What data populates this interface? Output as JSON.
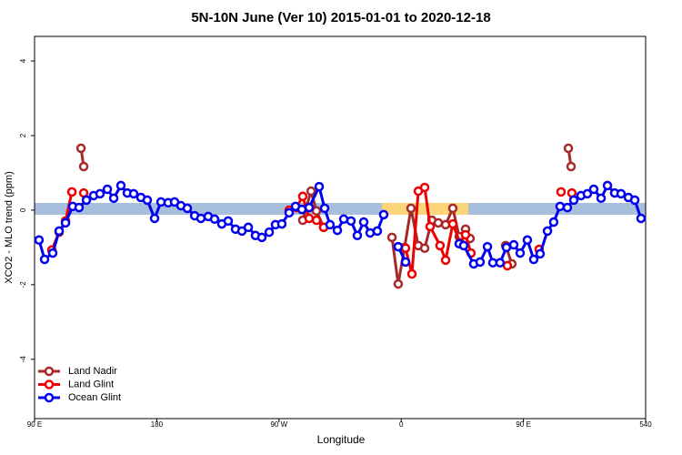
{
  "chart_data": {
    "type": "line",
    "title": "5N-10N June (Ver 10)   2015-01-01 to 2020-12-18",
    "xlabel": "Longitude",
    "ylabel": "XCO2 - MLO trend (ppm)",
    "xlim": [
      90,
      540
    ],
    "ylim": [
      -5.59,
      4.66
    ],
    "xticks": [
      {
        "value": 90,
        "label": "90 E"
      },
      180,
      {
        "value": 270,
        "label": "90 W"
      },
      {
        "value": 360,
        "label": "0"
      },
      {
        "value": 450,
        "label": "90 E"
      },
      540
    ],
    "yticks": [
      -4,
      -2,
      0,
      2,
      4
    ],
    "legend": "bottomleft",
    "series": [
      {
        "name": "Land Nadir",
        "color": "#a52a2a",
        "x": [
          124.2,
          126.2,
          null,
          287.5,
          293.6,
          297.6,
          302.9,
          null,
          353.2,
          357.8,
          362.5,
          367.2,
          372.6,
          377.3,
          382.6,
          387.3,
          392.7,
          398,
          402.7,
          407.4,
          410.7,
          null,
          436.9,
          441.5,
          null,
          483.1,
          485.1
        ],
        "values": [
          1.66,
          1.17,
          null,
          -0.27,
          0.51,
          -0.02,
          -0.46,
          null,
          -0.73,
          -1.98,
          -1.0,
          0.05,
          -0.95,
          -1.02,
          -0.27,
          -0.34,
          -0.39,
          0.05,
          -0.71,
          -0.51,
          -0.76,
          null,
          -0.95,
          -1.44,
          null,
          1.66,
          1.17
        ]
      },
      {
        "name": "Land Glint",
        "color": "#ee0000",
        "x": [
          102.7,
          108.1,
          112.8,
          117.5,
          null,
          126.2,
          null,
          277.5,
          282.8,
          287.5,
          292.2,
          297.6,
          302.9,
          null,
          363.2,
          367.9,
          372.6,
          377.3,
          381.3,
          388.6,
          392.7,
          398,
          403.4,
          407.4,
          411.4,
          null,
          438.2,
          null,
          461.6,
          null,
          477.7,
          null,
          485.7
        ],
        "values": [
          -1.07,
          -0.59,
          -0.29,
          0.49,
          null,
          0.46,
          null,
          0,
          0.07,
          0.37,
          -0.22,
          -0.27,
          -0.46,
          null,
          -1.02,
          -1.71,
          0.51,
          0.61,
          -0.44,
          -0.95,
          -1.34,
          -0.37,
          -0.88,
          -0.66,
          -1.15,
          null,
          -1.49,
          null,
          -1.05,
          null,
          0.49,
          null,
          0.46
        ]
      },
      {
        "name": "Ocean Glint",
        "color": "#0000ee",
        "x": [
          93.3,
          97.4,
          103.4,
          108.1,
          112.8,
          118.1,
          122.8,
          128.2,
          133.5,
          138.2,
          143.6,
          148.3,
          153.6,
          158.3,
          163,
          168.3,
          173,
          178.4,
          183.1,
          188.4,
          193.1,
          197.8,
          202.5,
          207.9,
          212.5,
          217.9,
          222.6,
          227.9,
          232.6,
          238,
          242.7,
          247.4,
          252.7,
          257.4,
          262.8,
          267.4,
          272.1,
          277.5,
          282.2,
          286.9,
          292.2,
          299.6,
          303.6,
          307.6,
          313,
          317.7,
          323,
          327.7,
          332.4,
          337.1,
          342.4,
          347.1,
          null,
          357.8,
          363.2,
          null,
          402.7,
          406,
          413.4,
          418.1,
          423.5,
          427.5,
          432.8,
          437.5,
          442.9,
          447.6,
          452.9,
          457.6,
          462.3,
          467.7,
          472.3,
          477,
          482.4,
          487.1,
          492.4,
          497.1,
          501.8,
          507.2,
          511.9,
          517.2,
          521.9,
          527.3,
          532,
          536.6
        ],
        "values": [
          -0.8,
          -1.32,
          -1.15,
          -0.56,
          -0.34,
          0.1,
          0.07,
          0.27,
          0.39,
          0.44,
          0.56,
          0.32,
          0.66,
          0.46,
          0.44,
          0.34,
          0.27,
          -0.22,
          0.22,
          0.2,
          0.22,
          0.12,
          0.05,
          -0.15,
          -0.22,
          -0.17,
          -0.24,
          -0.37,
          -0.29,
          -0.51,
          -0.56,
          -0.46,
          -0.68,
          -0.73,
          -0.59,
          -0.39,
          -0.37,
          -0.07,
          0.1,
          0.02,
          0.07,
          0.63,
          0.05,
          -0.39,
          -0.54,
          -0.24,
          -0.29,
          -0.68,
          -0.32,
          -0.61,
          -0.56,
          -0.12,
          null,
          -0.98,
          -1.39,
          null,
          -0.9,
          -0.95,
          -1.44,
          -1.39,
          -0.98,
          -1.41,
          -1.41,
          -1.0,
          -0.93,
          -1.15,
          -0.8,
          -1.32,
          -1.17,
          -0.56,
          -0.32,
          0.1,
          0.07,
          0.27,
          0.39,
          0.44,
          0.56,
          0.32,
          0.66,
          0.46,
          0.44,
          0.34,
          0.27,
          -0.22
        ]
      }
    ]
  }
}
